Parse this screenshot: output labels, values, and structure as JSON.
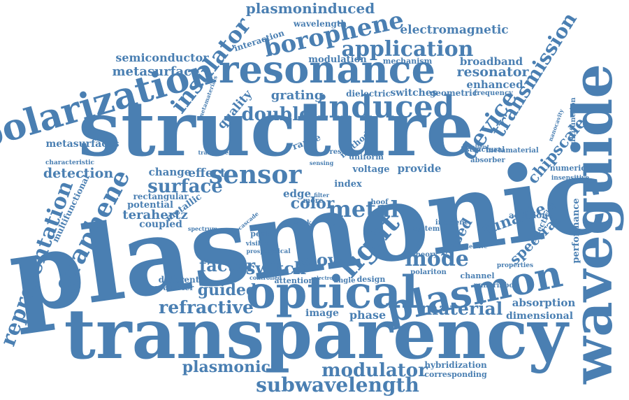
{
  "color": "#4a7fb2",
  "words": [
    "plasmonic",
    "structure",
    "transparency",
    "waveguide",
    "optical",
    "resonance",
    "plasmon",
    "polarization",
    "induced",
    "light",
    "sensor",
    "metal",
    "graphene",
    "representation",
    "borophene",
    "application",
    "insulator",
    "device",
    "transmission",
    "mode",
    "double",
    "surface",
    "subwavelength",
    "modulator",
    "refractive",
    "material",
    "plasmonics",
    "slow",
    "switch",
    "factor",
    "tunable",
    "spectral",
    "guided",
    "color",
    "chipscale",
    "based",
    "detection",
    "terahertz",
    "metasurface",
    "plasmoninduced",
    "electromagnetic",
    "resonator",
    "semiconductor",
    "absorption",
    "dimensional",
    "phase",
    "image",
    "effect",
    "change",
    "metasurfaces",
    "grating",
    "quality",
    "broadband",
    "enhanced",
    "coupled",
    "potential",
    "rectangular",
    "metallic",
    "edge",
    "index",
    "provide",
    "voltage",
    "dielectric",
    "switches",
    "geometric",
    "modulation",
    "mechanism",
    "interaction",
    "wavelength",
    "range",
    "method",
    "result",
    "uniform",
    "frequency",
    "structural",
    "absorber",
    "metamaterial",
    "numerical",
    "insensitive",
    "multifunction",
    "multifunctional",
    "characteristic",
    "performance",
    "selectivity",
    "addition",
    "incident",
    "theory",
    "design",
    "system",
    "angle",
    "channel",
    "nanoribbon",
    "polariton",
    "properties",
    "parameter",
    "different",
    "attention",
    "controlled",
    "electrode",
    "hybridization",
    "corresponding",
    "ring",
    "peak",
    "work",
    "more",
    "visible",
    "physical",
    "spectrum",
    "cascade",
    "prospect",
    "dual",
    "film",
    "hoof",
    "nanocavity",
    "metamaterials",
    "transparent",
    "excellent",
    "filter",
    "sensing",
    "selective"
  ]
}
